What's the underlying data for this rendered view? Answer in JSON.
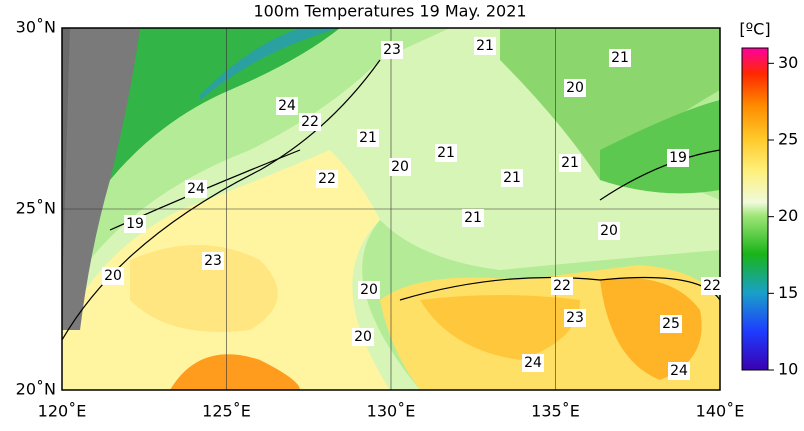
{
  "title": "100m Temperatures  19 May. 2021",
  "x_axis": {
    "ticks": [
      "120˚E",
      "125˚E",
      "130˚E",
      "135˚E",
      "140˚E"
    ]
  },
  "y_axis": {
    "ticks": [
      "30˚N",
      "25˚N",
      "20˚N"
    ]
  },
  "colorbar": {
    "label": "[ºC]",
    "lim": [
      10,
      31
    ],
    "ticks": [
      10,
      15,
      20,
      25,
      30
    ]
  },
  "contour_labels": [
    23,
    21,
    21,
    20,
    24,
    22,
    21,
    21,
    20,
    19,
    21,
    22,
    21,
    24,
    21,
    19,
    20,
    23,
    20,
    22,
    22,
    20,
    23,
    25,
    20,
    24,
    24
  ]
}
